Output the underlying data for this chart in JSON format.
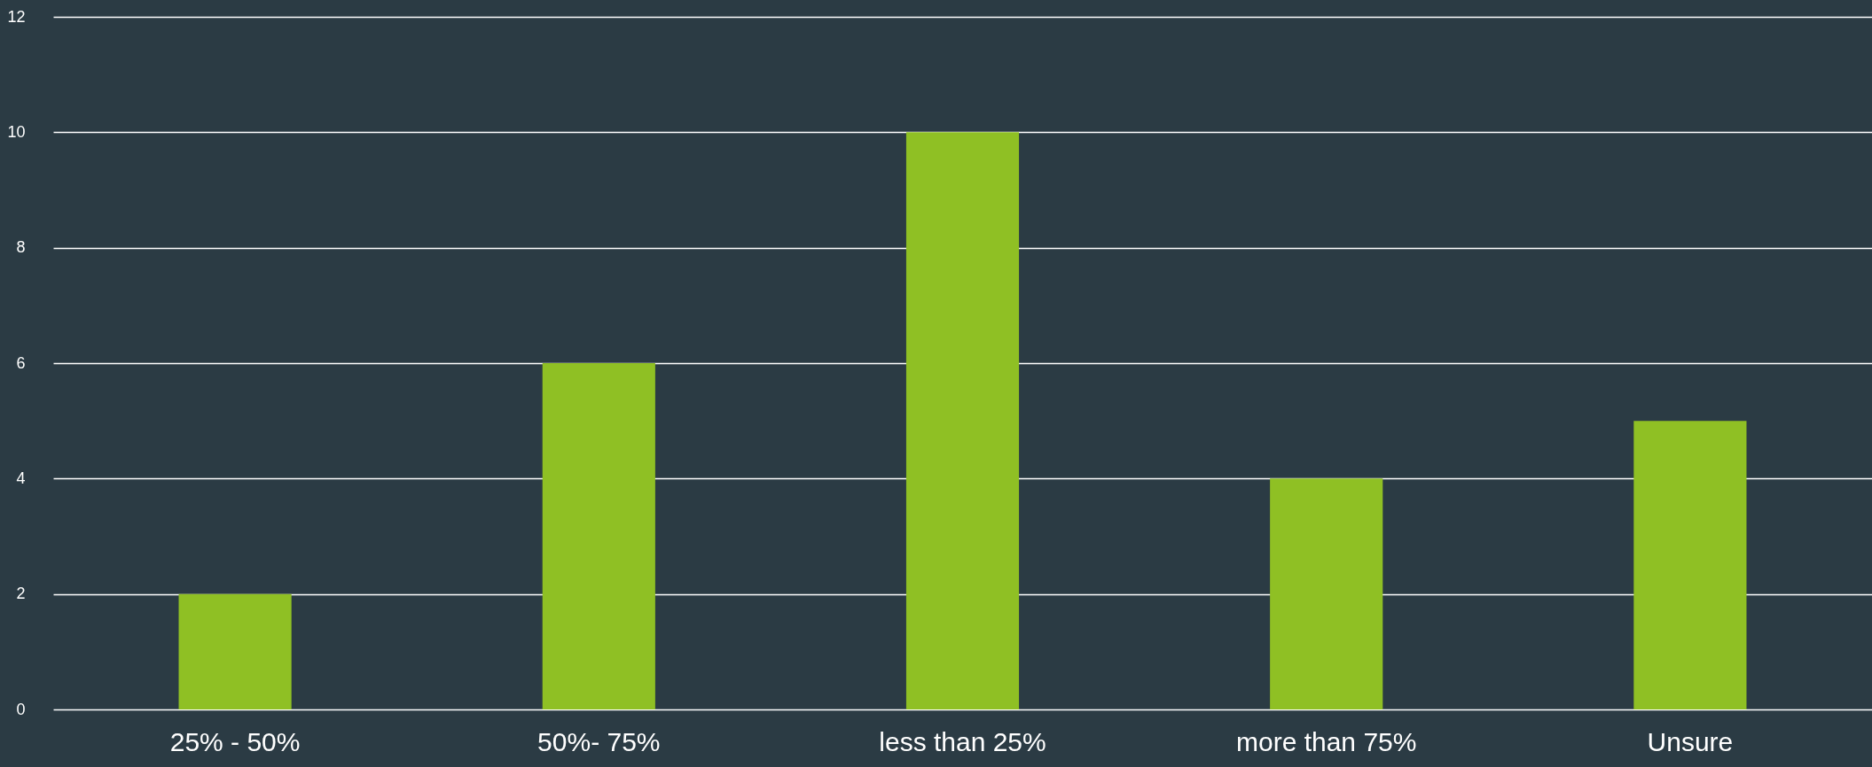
{
  "chart_data": {
    "type": "bar",
    "categories": [
      "25% - 50%",
      "50%- 75%",
      "less than 25%",
      "more than 75%",
      "Unsure"
    ],
    "values": [
      2,
      6,
      10,
      4,
      5
    ],
    "color": "#8fc024",
    "ylim": [
      0,
      12
    ],
    "yticks": [
      0,
      2,
      4,
      6,
      8,
      10,
      12
    ],
    "grid": "y"
  }
}
